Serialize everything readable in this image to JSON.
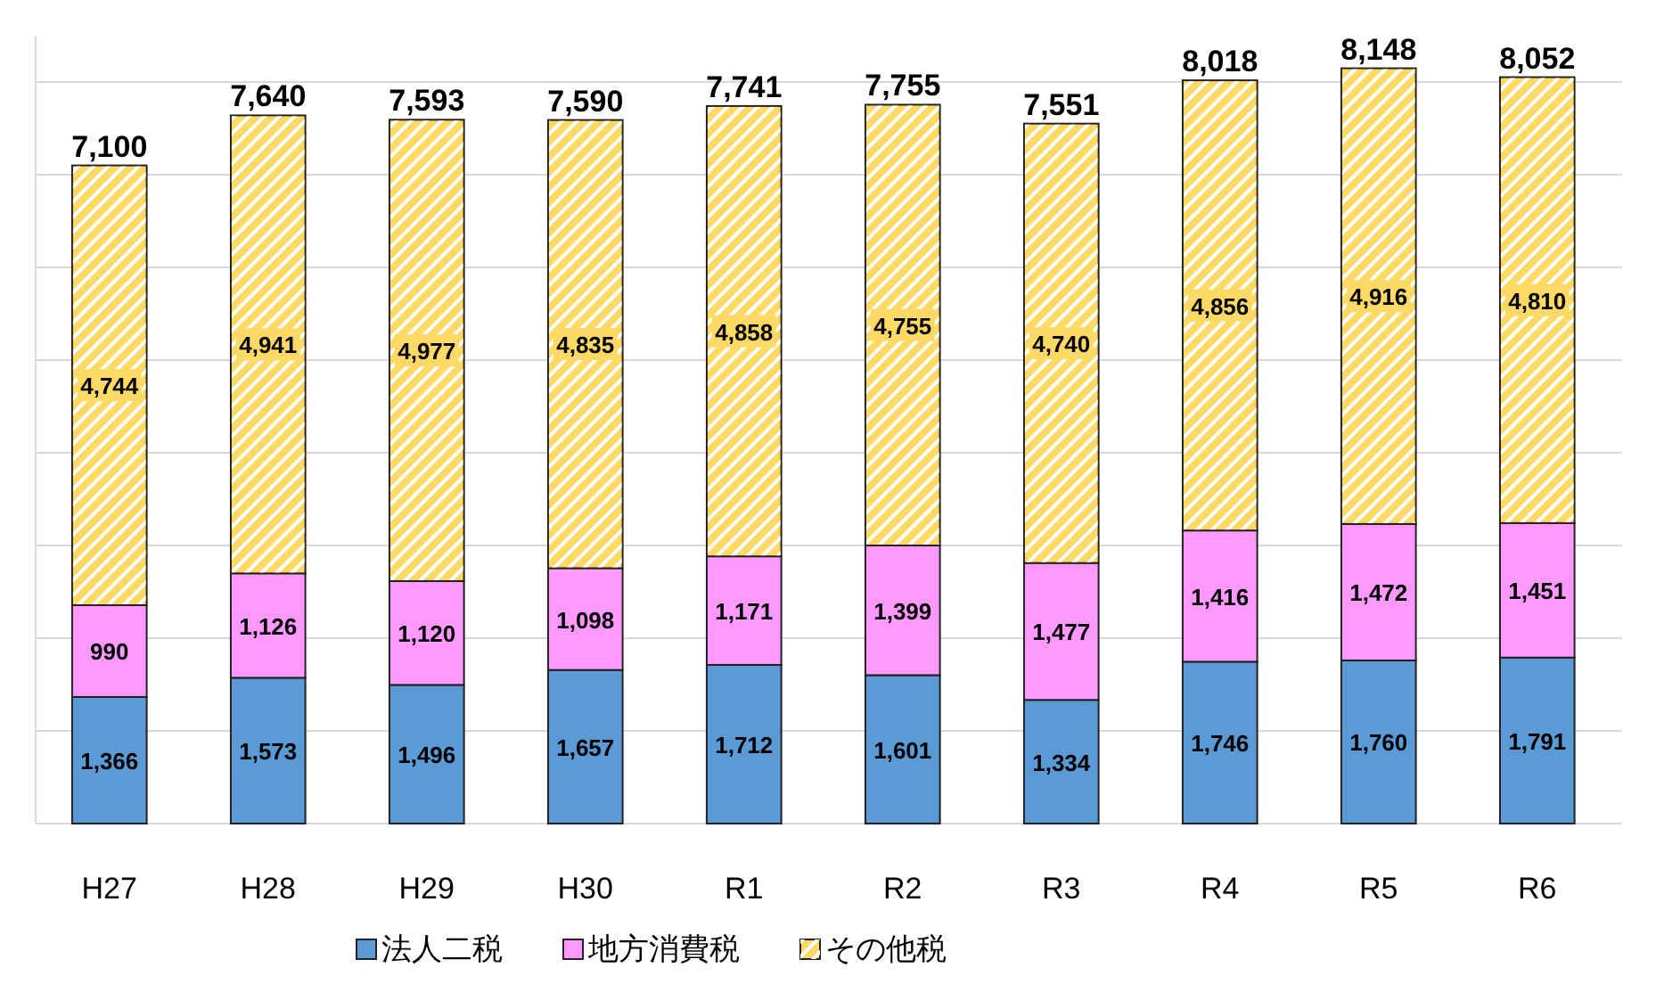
{
  "chart_data": {
    "type": "bar",
    "stacked": true,
    "categories": [
      "H27",
      "H28",
      "H29",
      "H30",
      "R1",
      "R2",
      "R3",
      "R4",
      "R5",
      "R6"
    ],
    "series": [
      {
        "name": "法人二税",
        "color": "#5b9bd5",
        "values": [
          1366,
          1573,
          1496,
          1657,
          1712,
          1601,
          1334,
          1746,
          1760,
          1791
        ],
        "value_labels": [
          "1,366",
          "1,573",
          "1,496",
          "1,657",
          "1,712",
          "1,601",
          "1,334",
          "1,746",
          "1,760",
          "1,791"
        ]
      },
      {
        "name": "地方消費税",
        "color": "#ff99ff",
        "values": [
          990,
          1126,
          1120,
          1098,
          1171,
          1399,
          1477,
          1416,
          1472,
          1451
        ],
        "value_labels": [
          "990",
          "1,126",
          "1,120",
          "1,098",
          "1,171",
          "1,399",
          "1,477",
          "1,416",
          "1,472",
          "1,451"
        ]
      },
      {
        "name": "その他税",
        "color": "#ffd966",
        "values": [
          4744,
          4941,
          4977,
          4835,
          4858,
          4755,
          4740,
          4856,
          4916,
          4810
        ],
        "value_labels": [
          "4,744",
          "4,941",
          "4,977",
          "4,835",
          "4,858",
          "4,755",
          "4,740",
          "4,856",
          "4,916",
          "4,810"
        ]
      }
    ],
    "totals": [
      "7,100",
      "7,640",
      "7,593",
      "7,590",
      "7,741",
      "7,755",
      "7,551",
      "8,018",
      "8,148",
      "8,052"
    ],
    "ylim": [
      0,
      8500
    ],
    "yticks": [
      {
        "value": 0,
        "label": null
      },
      {
        "value": 1000,
        "label": null
      },
      {
        "value": 2000,
        "label": null
      },
      {
        "value": 3000,
        "label": null
      },
      {
        "value": 4000,
        "label": null
      },
      {
        "value": 5000,
        "label": null
      },
      {
        "value": 6000,
        "label": null
      },
      {
        "value": 7000,
        "label": null
      },
      {
        "value": 8000,
        "label": null
      }
    ],
    "grid": "y",
    "legend": "bottom",
    "tick_labels": "x"
  }
}
